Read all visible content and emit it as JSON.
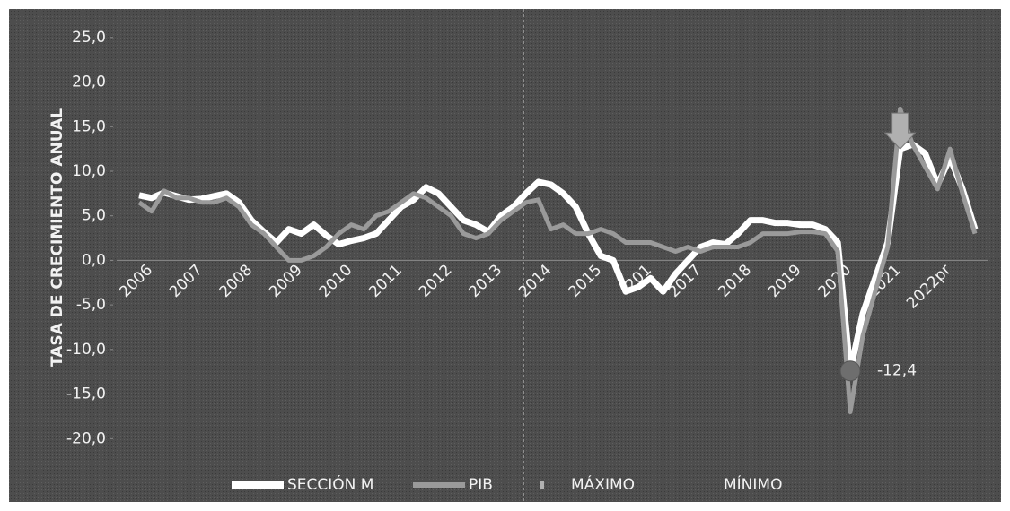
{
  "chart_data": {
    "type": "line",
    "y_label": "TASA DE CRECIMIENTO ANUAL",
    "categories": [
      "2006",
      null,
      null,
      null,
      "2007",
      null,
      null,
      null,
      "2008",
      null,
      null,
      null,
      "2009",
      null,
      null,
      null,
      "2010",
      null,
      null,
      null,
      "2011",
      null,
      null,
      null,
      "2012",
      null,
      null,
      null,
      "2013",
      null,
      null,
      null,
      "2014",
      null,
      null,
      null,
      "2015",
      null,
      null,
      null,
      "201",
      null,
      null,
      null,
      "2017",
      null,
      null,
      null,
      "2018",
      null,
      null,
      null,
      "2019",
      null,
      null,
      null,
      "2020",
      null,
      null,
      null,
      "2021",
      null,
      null,
      null,
      "2022pr",
      null,
      null,
      null
    ],
    "series": [
      {
        "name": "SECCIÓN M",
        "color": "#ffffff",
        "values": [
          7.3,
          7.0,
          7.6,
          7.2,
          6.8,
          6.9,
          7.2,
          7.5,
          6.5,
          4.5,
          3.2,
          2.0,
          3.5,
          3.0,
          4.0,
          2.8,
          1.8,
          2.2,
          2.5,
          3.0,
          4.5,
          6.0,
          6.8,
          8.2,
          7.5,
          6.0,
          4.5,
          4.0,
          3.2,
          5.0,
          6.0,
          7.5,
          8.8,
          8.5,
          7.5,
          6.0,
          3.0,
          0.5,
          0.0,
          -3.5,
          -3.0,
          -2.0,
          -3.5,
          -1.5,
          0.0,
          1.5,
          2.0,
          1.8,
          3.0,
          4.5,
          4.5,
          4.2,
          4.2,
          4.0,
          4.0,
          3.5,
          2.0,
          -12.4,
          -6.0,
          -2.0,
          2.0,
          12.5,
          13.0,
          12.0,
          8.5,
          11.5,
          8.0,
          3.5
        ]
      },
      {
        "name": "PIB",
        "color": "#9a9a9a",
        "values": [
          6.5,
          5.5,
          7.8,
          7.0,
          7.0,
          6.5,
          6.5,
          7.0,
          6.0,
          4.0,
          3.0,
          1.5,
          0.0,
          0.0,
          0.5,
          1.5,
          3.0,
          4.0,
          3.5,
          5.0,
          5.5,
          6.5,
          7.5,
          7.0,
          6.0,
          5.0,
          3.0,
          2.5,
          3.0,
          4.5,
          5.5,
          6.5,
          6.8,
          3.5,
          4.0,
          3.0,
          3.0,
          3.5,
          3.0,
          2.0,
          2.0,
          2.0,
          1.5,
          1.0,
          1.5,
          1.0,
          1.5,
          1.5,
          1.5,
          2.0,
          3.0,
          3.0,
          3.0,
          3.2,
          3.2,
          3.0,
          1.0,
          -17.0,
          -8.5,
          -3.5,
          1.5,
          17.0,
          13.0,
          10.5,
          8.0,
          12.5,
          7.5,
          3.0
        ]
      },
      {
        "name": "MÁXIMO",
        "color": "#b0b0b0",
        "values": [
          null,
          null,
          null,
          null,
          null,
          null,
          null,
          null,
          null,
          null,
          null,
          null,
          null,
          null,
          null,
          null,
          null,
          null,
          null,
          null,
          null,
          null,
          null,
          null,
          null,
          null,
          null,
          null,
          null,
          null,
          null,
          null,
          null,
          null,
          null,
          null,
          null,
          null,
          null,
          null,
          null,
          null,
          null,
          null,
          null,
          null,
          null,
          null,
          null,
          null,
          null,
          null,
          null,
          null,
          null,
          null,
          null,
          null,
          null,
          null,
          null,
          12.5,
          null,
          null,
          null,
          null,
          null,
          null
        ]
      },
      {
        "name": "MÍNIMO",
        "color": "#6e6e6e",
        "values": [
          null,
          null,
          null,
          null,
          null,
          null,
          null,
          null,
          null,
          null,
          null,
          null,
          null,
          null,
          null,
          null,
          null,
          null,
          null,
          null,
          null,
          null,
          null,
          null,
          null,
          null,
          null,
          null,
          null,
          null,
          null,
          null,
          null,
          null,
          null,
          null,
          null,
          null,
          null,
          null,
          null,
          null,
          null,
          null,
          null,
          null,
          null,
          null,
          null,
          null,
          null,
          null,
          null,
          null,
          null,
          null,
          null,
          -12.4,
          null,
          null,
          null,
          null,
          null,
          null,
          null,
          null,
          null,
          null
        ],
        "value_labels": [
          null,
          null,
          null,
          null,
          null,
          null,
          null,
          null,
          null,
          null,
          null,
          null,
          null,
          null,
          null,
          null,
          null,
          null,
          null,
          null,
          null,
          null,
          null,
          null,
          null,
          null,
          null,
          null,
          null,
          null,
          null,
          null,
          null,
          null,
          null,
          null,
          null,
          null,
          null,
          null,
          null,
          null,
          null,
          null,
          null,
          null,
          null,
          null,
          null,
          null,
          null,
          null,
          null,
          null,
          null,
          null,
          null,
          "-12,4",
          null,
          null,
          null,
          null,
          null,
          null,
          null,
          null,
          null,
          null
        ]
      }
    ],
    "ylim": [
      -25,
      28
    ],
    "yticks": [
      {
        "value": -20,
        "label": "-20,0"
      },
      {
        "value": -15,
        "label": "-15,0"
      },
      {
        "value": -10,
        "label": "-10,0"
      },
      {
        "value": -5,
        "label": "-5,0"
      },
      {
        "value": 0,
        "label": "0,0"
      },
      {
        "value": 5,
        "label": "5,0"
      },
      {
        "value": 10,
        "label": "10,0"
      },
      {
        "value": 15,
        "label": "15,0"
      },
      {
        "value": 20,
        "label": "20,0"
      },
      {
        "value": 25,
        "label": "25,0"
      }
    ],
    "grid": false,
    "legend": "bottom"
  }
}
